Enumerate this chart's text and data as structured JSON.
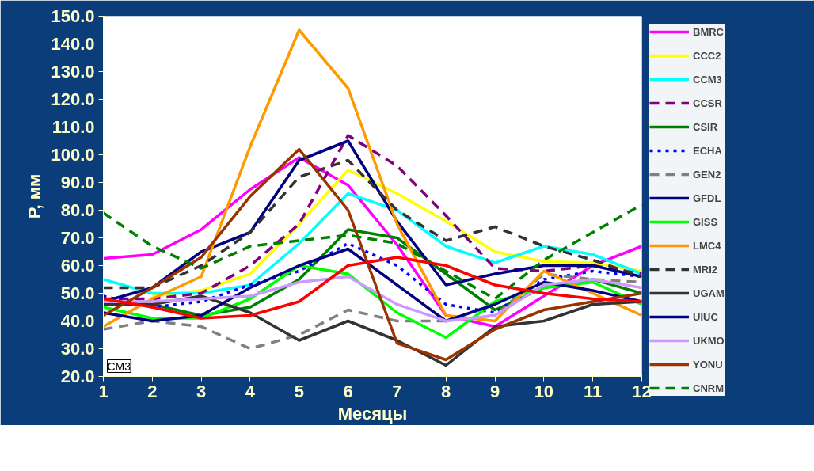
{
  "chart_data": {
    "type": "line",
    "xlabel": "Месяцы",
    "ylabel": "P, мм",
    "annotations": [
      "CM3"
    ],
    "x": [
      1,
      2,
      3,
      4,
      5,
      6,
      7,
      8,
      9,
      10,
      11,
      12
    ],
    "xlim": [
      1,
      12
    ],
    "xticks": [
      1,
      2,
      3,
      4,
      5,
      6,
      7,
      8,
      9,
      10,
      11,
      12
    ],
    "ylim": [
      20,
      150
    ],
    "yticks": [
      {
        "value": 20,
        "label": "20.0"
      },
      {
        "value": 30,
        "label": "30.0"
      },
      {
        "value": 40,
        "label": "40.0"
      },
      {
        "value": 50,
        "label": "50.0"
      },
      {
        "value": 60,
        "label": "60.0"
      },
      {
        "value": 70,
        "label": "70.0"
      },
      {
        "value": 80,
        "label": "80.0"
      },
      {
        "value": 90,
        "label": "90.0"
      },
      {
        "value": 100,
        "label": "100.0"
      },
      {
        "value": 110,
        "label": "110.0"
      },
      {
        "value": 120,
        "label": "120.0"
      },
      {
        "value": 130,
        "label": "130.0"
      },
      {
        "value": 140,
        "label": "140.0"
      },
      {
        "value": 150,
        "label": "150.0"
      }
    ],
    "grid": false,
    "legend": "right",
    "marker": "none",
    "line_style": "solid",
    "series": [
      {
        "name": "BMRC",
        "color": "#ff00ff",
        "values": [
          62.6,
          64,
          73,
          87.5,
          99,
          89,
          67.5,
          42,
          38,
          49,
          60,
          67
        ]
      },
      {
        "name": "CCC2",
        "color": "#ffff00",
        "values": [
          null,
          49,
          51,
          57,
          75,
          94.5,
          86,
          76,
          65,
          61.5,
          61,
          58
        ]
      },
      {
        "name": "CCM3",
        "color": "#00ffff",
        "values": [
          55,
          50,
          50,
          53,
          68,
          86,
          80,
          67,
          61,
          67,
          64,
          57
        ]
      },
      {
        "name": "CCSR",
        "color": "#800080",
        "line_style": "dashed",
        "values": [
          48,
          48,
          50,
          60,
          75,
          107,
          96,
          78,
          59,
          58,
          60,
          57
        ]
      },
      {
        "name": "CSIR",
        "color": "#008000",
        "values": [
          46,
          46,
          42,
          45,
          55,
          73,
          70,
          57,
          44,
          52,
          55,
          50
        ]
      },
      {
        "name": "ECHA",
        "color": "#0000ff",
        "line_style": "dotted",
        "values": [
          49,
          45,
          47,
          53,
          58,
          68,
          60,
          46,
          43,
          55,
          58,
          56
        ]
      },
      {
        "name": "GEN2",
        "color": "#808080",
        "line_style": "dashed",
        "values": [
          37,
          40,
          38,
          30,
          35,
          44,
          40,
          40,
          42,
          57,
          55,
          54
        ]
      },
      {
        "name": "GFDL",
        "color": "#000080",
        "values": [
          47,
          52,
          65,
          72,
          98,
          105,
          76,
          53,
          57,
          60,
          60,
          56
        ]
      },
      {
        "name": "GISS",
        "color": "#00ff00",
        "values": [
          45,
          41,
          41,
          48,
          60,
          57,
          43,
          34,
          47,
          52,
          54,
          46
        ]
      },
      {
        "name": "LMC4",
        "color": "#ff9900",
        "values": [
          38,
          48,
          56,
          103,
          145,
          124,
          75,
          42,
          40,
          58,
          50,
          42
        ]
      },
      {
        "name": "MRI2",
        "color": "#333333",
        "line_style": "dashed",
        "values": [
          52,
          52,
          60,
          72,
          92,
          98,
          80,
          69,
          74,
          67,
          62,
          56
        ]
      },
      {
        "name": "UGAM",
        "color": "#333333",
        "values": [
          46,
          46,
          49,
          43,
          33,
          40,
          33,
          24,
          38,
          40,
          46,
          47
        ]
      },
      {
        "name": "UIUC",
        "color": "#000080",
        "values": [
          43,
          40,
          42,
          52,
          60,
          66,
          53,
          40,
          46,
          54,
          51,
          47
        ]
      },
      {
        "name": "UKMO",
        "color": "#cc99ff",
        "values": [
          47,
          47,
          48,
          49,
          54,
          56,
          46,
          40,
          42,
          53,
          55,
          52
        ]
      },
      {
        "name": "YONU",
        "color": "#993300",
        "values": [
          42,
          52,
          63,
          85,
          102,
          80,
          32,
          26,
          37,
          44,
          47,
          50
        ]
      },
      {
        "name": "CNRM",
        "color": "#008000",
        "line_style": "dashed",
        "values": [
          79,
          67,
          59,
          67,
          69,
          71,
          68,
          58,
          48,
          62,
          72,
          82
        ]
      },
      {
        "color": "#ff0000",
        "values": [
          48,
          45,
          41,
          42,
          47,
          60,
          63,
          60,
          53,
          50,
          48,
          47
        ]
      }
    ]
  }
}
